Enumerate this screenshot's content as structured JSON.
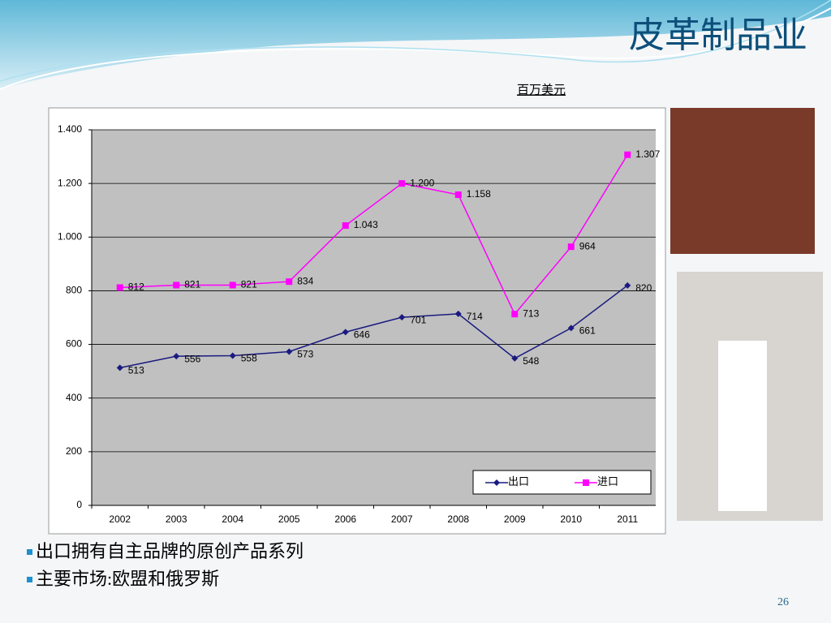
{
  "title": "皮革制品业",
  "bullets": [
    "出口拥有自主品牌的原创产品系列",
    "主要市场:欧盟和俄罗斯"
  ],
  "page_number": "26",
  "chart_data": {
    "type": "line",
    "unit": "百万美元",
    "categories": [
      "2002",
      "2003",
      "2004",
      "2005",
      "2006",
      "2007",
      "2008",
      "2009",
      "2010",
      "2011"
    ],
    "series": [
      {
        "name": "出口",
        "color": "#1a1a80",
        "marker": "diamond",
        "values": [
          513,
          556,
          558,
          573,
          646,
          701,
          714,
          548,
          661,
          820
        ]
      },
      {
        "name": "进口",
        "color": "#ff00ff",
        "marker": "square",
        "values": [
          812,
          821,
          821,
          834,
          1043,
          1200,
          1158,
          713,
          964,
          1307
        ],
        "value_labels": [
          "812",
          "821",
          "821",
          "834",
          "1.043",
          "1.200",
          "1.158",
          "713",
          "964",
          "1.307"
        ]
      }
    ],
    "ylim": [
      0,
      1400
    ],
    "yticks": [
      0,
      200,
      400,
      600,
      800,
      {
        "value": 1000,
        "label": "1.000"
      },
      {
        "value": 1200,
        "label": "1.200"
      },
      {
        "value": 1400,
        "label": "1.400"
      }
    ],
    "grid": true,
    "legend": "bottom-right"
  }
}
